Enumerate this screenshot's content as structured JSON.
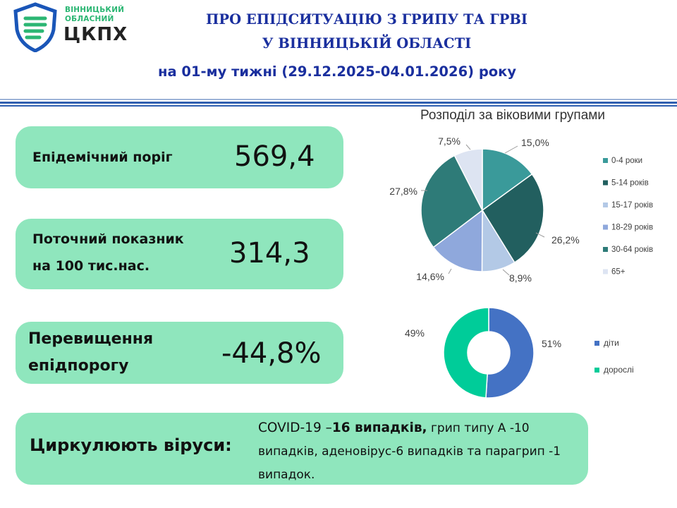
{
  "header": {
    "logo_line1": "ВІННИЦЬКИЙ",
    "logo_line2": "ОБЛАСНИЙ",
    "logo_main": "ЦКПХ",
    "title_line1": "ПРО ЕПІДСИТУАЦІЮ З ГРИПУ ТА ГРВІ",
    "title_line2": "У ВІННИЦЬКІЙ ОБЛАСТІ",
    "title_line3": "на 01-му тижні (29.12.2025-04.01.2026) року"
  },
  "colors": {
    "title": "#1a2f9e",
    "card": "#8fe6bd",
    "rule": "#2f5fb0"
  },
  "cards": {
    "threshold": {
      "label": "Епідемічний поріг",
      "value": "569,4"
    },
    "current": {
      "label_line1": "Поточний показник",
      "label_line2": "на 100 тис.нас.",
      "value": "314,3"
    },
    "excess": {
      "label_line1": "Перевищення",
      "label_line2": "епідпорогу",
      "value": "-44,8%"
    },
    "viruses": {
      "label": "Циркулюють віруси:",
      "text_part1": "COVID-19 –",
      "text_bold": "16 випадків,",
      "text_part2": " грип типу А -10 випадків, аденовірус-6 випадків та парагрип -1 випадок."
    }
  },
  "chart_data": [
    {
      "type": "pie",
      "title": "Розподіл за віковими групами",
      "categories": [
        "0-4 роки",
        "5-14 років",
        "15-17 років",
        "18-29 років",
        "30-64 років",
        "65+"
      ],
      "values": [
        15.0,
        26.2,
        8.9,
        14.6,
        27.8,
        7.5
      ],
      "value_labels": [
        "15,0%",
        "26,2%",
        "8,9%",
        "14,6%",
        "27,8%",
        "7,5%"
      ],
      "colors": [
        "#3a9a9a",
        "#225f5f",
        "#b3c9e6",
        "#8fa8dc",
        "#2e7b78",
        "#dde4f2"
      ],
      "legend": "right"
    },
    {
      "type": "pie",
      "variant": "donut",
      "categories": [
        "діти",
        "дорослі"
      ],
      "values": [
        51,
        49
      ],
      "value_labels": [
        "51%",
        "49%"
      ],
      "colors": [
        "#4472c4",
        "#00cc99"
      ],
      "legend": "right"
    }
  ]
}
